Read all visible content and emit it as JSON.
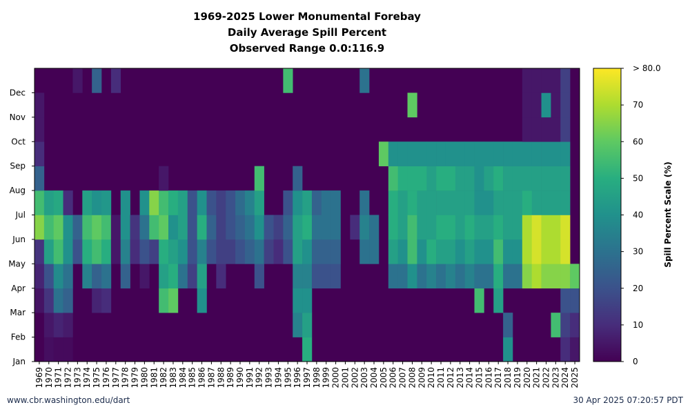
{
  "chart_data": {
    "type": "heatmap",
    "title": [
      "1969-2025 Lower Monumental Forebay",
      "Daily Average Spill Percent",
      "Observed Range 0.0:116.9"
    ],
    "x_categories": [
      "1969",
      "1970",
      "1971",
      "1972",
      "1973",
      "1974",
      "1975",
      "1976",
      "1977",
      "1978",
      "1979",
      "1980",
      "1981",
      "1982",
      "1983",
      "1984",
      "1985",
      "1986",
      "1987",
      "1988",
      "1989",
      "1990",
      "1991",
      "1992",
      "1993",
      "1994",
      "1995",
      "1996",
      "1997",
      "1998",
      "1999",
      "2000",
      "2001",
      "2002",
      "2003",
      "2004",
      "2005",
      "2006",
      "2007",
      "2008",
      "2009",
      "2010",
      "2011",
      "2012",
      "2013",
      "2014",
      "2015",
      "2016",
      "2017",
      "2018",
      "2019",
      "2020",
      "2021",
      "2022",
      "2023",
      "2024",
      "2025"
    ],
    "y_categories": [
      "Jan",
      "Feb",
      "Mar",
      "Apr",
      "May",
      "Jun",
      "Jul",
      "Aug",
      "Sep",
      "Oct",
      "Nov",
      "Dec"
    ],
    "colorbar": {
      "label": "Spill Percent Scale (%)",
      "min": 0,
      "max": 80,
      "ticks": [
        "0",
        "10",
        "20",
        "30",
        "40",
        "50",
        "60",
        "70",
        "> 80.0"
      ],
      "colormap": "viridis"
    },
    "background_value": 0,
    "cell_values": {
      "1969": [
        0,
        0,
        4,
        8,
        12,
        65,
        55,
        25,
        10,
        5,
        5,
        0
      ],
      "1970": [
        3,
        5,
        12,
        20,
        45,
        55,
        45,
        0,
        0,
        0,
        0,
        0
      ],
      "1971": [
        2,
        8,
        30,
        38,
        55,
        60,
        48,
        0,
        0,
        0,
        0,
        0
      ],
      "1972": [
        2,
        6,
        25,
        30,
        40,
        40,
        10,
        0,
        0,
        0,
        0,
        0
      ],
      "1973": [
        0,
        0,
        0,
        0,
        20,
        25,
        0,
        0,
        0,
        0,
        0,
        5
      ],
      "1974": [
        0,
        0,
        0,
        35,
        50,
        55,
        45,
        0,
        0,
        0,
        0,
        0
      ],
      "1975": [
        0,
        0,
        8,
        25,
        55,
        60,
        40,
        0,
        0,
        0,
        0,
        25
      ],
      "1976": [
        0,
        0,
        10,
        30,
        50,
        55,
        42,
        0,
        0,
        0,
        0,
        0
      ],
      "1977": [
        0,
        0,
        0,
        0,
        5,
        5,
        0,
        0,
        0,
        0,
        0,
        10
      ],
      "1978": [
        0,
        0,
        0,
        25,
        35,
        40,
        40,
        0,
        0,
        0,
        0,
        0
      ],
      "1979": [
        0,
        0,
        0,
        0,
        10,
        12,
        0,
        0,
        0,
        0,
        0,
        0
      ],
      "1980": [
        0,
        0,
        0,
        5,
        20,
        30,
        40,
        0,
        0,
        0,
        0,
        0
      ],
      "1981": [
        0,
        0,
        0,
        0,
        15,
        55,
        65,
        0,
        0,
        0,
        0,
        0
      ],
      "1982": [
        0,
        0,
        55,
        45,
        50,
        60,
        55,
        5,
        0,
        0,
        0,
        0
      ],
      "1983": [
        0,
        0,
        60,
        50,
        45,
        40,
        50,
        0,
        0,
        0,
        0,
        0
      ],
      "1984": [
        0,
        0,
        0,
        30,
        40,
        45,
        45,
        0,
        0,
        0,
        0,
        0
      ],
      "1985": [
        0,
        0,
        0,
        15,
        20,
        20,
        20,
        0,
        0,
        0,
        0,
        0
      ],
      "1986": [
        0,
        0,
        40,
        45,
        35,
        50,
        40,
        0,
        0,
        0,
        0,
        0
      ],
      "1987": [
        0,
        0,
        0,
        0,
        20,
        25,
        20,
        0,
        0,
        0,
        0,
        0
      ],
      "1988": [
        0,
        0,
        0,
        10,
        15,
        15,
        15,
        0,
        0,
        0,
        0,
        0
      ],
      "1989": [
        0,
        0,
        0,
        0,
        15,
        20,
        20,
        0,
        0,
        0,
        0,
        0
      ],
      "1990": [
        0,
        0,
        0,
        0,
        20,
        25,
        28,
        0,
        0,
        0,
        0,
        0
      ],
      "1991": [
        0,
        0,
        0,
        0,
        25,
        30,
        35,
        0,
        0,
        0,
        0,
        0
      ],
      "1992": [
        0,
        0,
        0,
        20,
        30,
        40,
        45,
        55,
        0,
        0,
        0,
        0
      ],
      "1993": [
        0,
        0,
        0,
        0,
        15,
        20,
        0,
        0,
        0,
        0,
        0,
        0
      ],
      "1994": [
        0,
        0,
        0,
        0,
        10,
        15,
        0,
        0,
        0,
        0,
        0,
        0
      ],
      "1995": [
        0,
        0,
        0,
        0,
        20,
        25,
        20,
        0,
        0,
        0,
        0,
        55
      ],
      "1996": [
        0,
        35,
        40,
        35,
        45,
        45,
        40,
        25,
        0,
        0,
        0,
        0
      ],
      "1997": [
        50,
        45,
        40,
        35,
        40,
        50,
        45,
        0,
        0,
        0,
        0,
        0
      ],
      "1998": [
        0,
        0,
        0,
        20,
        25,
        30,
        25,
        0,
        0,
        0,
        0,
        0
      ],
      "1999": [
        0,
        0,
        0,
        20,
        25,
        30,
        30,
        0,
        0,
        0,
        0,
        0
      ],
      "2000": [
        0,
        0,
        0,
        20,
        25,
        30,
        30,
        0,
        0,
        0,
        0,
        0
      ],
      "2001": [
        0,
        0,
        0,
        0,
        0,
        0,
        0,
        0,
        0,
        0,
        0,
        0
      ],
      "2002": [
        0,
        0,
        0,
        0,
        0,
        10,
        0,
        0,
        0,
        0,
        0,
        0
      ],
      "2003": [
        0,
        0,
        0,
        0,
        30,
        35,
        30,
        0,
        0,
        0,
        0,
        30
      ],
      "2004": [
        0,
        0,
        0,
        0,
        30,
        30,
        0,
        0,
        0,
        0,
        0,
        0
      ],
      "2005": [
        0,
        0,
        0,
        0,
        0,
        0,
        0,
        0,
        60,
        0,
        0,
        0
      ],
      "2006": [
        0,
        0,
        0,
        30,
        45,
        50,
        50,
        55,
        40,
        0,
        0,
        0
      ],
      "2007": [
        0,
        0,
        0,
        30,
        40,
        45,
        45,
        50,
        40,
        0,
        0,
        0
      ],
      "2008": [
        0,
        0,
        0,
        40,
        55,
        55,
        50,
        50,
        40,
        0,
        60,
        0
      ],
      "2009": [
        0,
        0,
        0,
        30,
        40,
        45,
        45,
        50,
        40,
        0,
        0,
        0
      ],
      "2010": [
        0,
        0,
        0,
        35,
        50,
        45,
        45,
        45,
        40,
        0,
        0,
        0
      ],
      "2011": [
        0,
        0,
        0,
        30,
        45,
        50,
        45,
        50,
        40,
        0,
        0,
        0
      ],
      "2012": [
        0,
        0,
        0,
        35,
        45,
        50,
        45,
        50,
        40,
        0,
        0,
        0
      ],
      "2013": [
        0,
        0,
        0,
        30,
        40,
        45,
        45,
        45,
        40,
        0,
        0,
        0
      ],
      "2014": [
        0,
        0,
        0,
        35,
        45,
        50,
        45,
        45,
        40,
        0,
        0,
        0
      ],
      "2015": [
        0,
        0,
        55,
        30,
        40,
        45,
        40,
        40,
        40,
        0,
        0,
        0
      ],
      "2016": [
        0,
        0,
        0,
        30,
        40,
        45,
        40,
        45,
        40,
        0,
        0,
        0
      ],
      "2017": [
        0,
        0,
        45,
        50,
        55,
        50,
        45,
        50,
        40,
        0,
        0,
        0
      ],
      "2018": [
        40,
        25,
        0,
        30,
        40,
        45,
        45,
        45,
        40,
        0,
        0,
        0
      ],
      "2019": [
        0,
        0,
        0,
        30,
        40,
        45,
        45,
        45,
        40,
        0,
        0,
        0
      ],
      "2020": [
        0,
        0,
        0,
        65,
        70,
        70,
        50,
        45,
        40,
        5,
        5,
        5
      ],
      "2021": [
        0,
        0,
        0,
        70,
        75,
        75,
        45,
        45,
        40,
        5,
        5,
        5
      ],
      "2022": [
        0,
        0,
        0,
        65,
        70,
        70,
        45,
        45,
        40,
        5,
        40,
        5
      ],
      "2023": [
        0,
        55,
        0,
        65,
        70,
        70,
        45,
        45,
        40,
        5,
        5,
        5
      ],
      "2024": [
        10,
        15,
        20,
        65,
        75,
        75,
        45,
        45,
        40,
        15,
        15,
        15
      ],
      "2025": [
        5,
        10,
        20,
        60,
        0,
        0,
        0,
        0,
        0,
        0,
        0,
        0
      ]
    }
  },
  "footer": {
    "left": "www.cbr.washington.edu/dart",
    "right": "30 Apr 2025 07:20:57 PDT"
  }
}
